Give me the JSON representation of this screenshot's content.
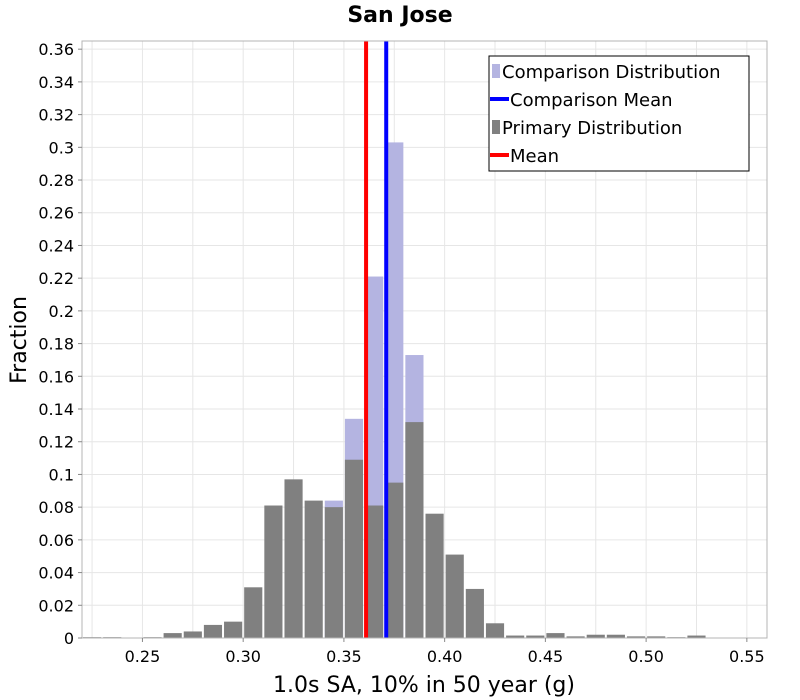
{
  "chart_data": {
    "type": "bar",
    "title": "San Jose",
    "xlabel": "1.0s SA, 10% in 50 year (g)",
    "ylabel": "Fraction",
    "xlim": [
      0.22,
      0.56
    ],
    "ylim": [
      0,
      0.365
    ],
    "bin_width": 0.01,
    "x_ticks": [
      0.25,
      0.3,
      0.35,
      0.4,
      0.45,
      0.5,
      0.55
    ],
    "x_tick_labels": [
      "0.25",
      "0.30",
      "0.35",
      "0.40",
      "0.45",
      "0.50",
      "0.55"
    ],
    "y_ticks": [
      0,
      0.02,
      0.04,
      0.06,
      0.08,
      0.1,
      0.12,
      0.14,
      0.16,
      0.18,
      0.2,
      0.22,
      0.24,
      0.26,
      0.28,
      0.3,
      0.32,
      0.34,
      0.36
    ],
    "y_tick_labels": [
      "0",
      "0.02",
      "0.04",
      "0.06",
      "0.08",
      "0.1",
      "0.12",
      "0.14",
      "0.16",
      "0.18",
      "0.2",
      "0.22",
      "0.24",
      "0.26",
      "0.28",
      "0.3",
      "0.32",
      "0.34",
      "0.36"
    ],
    "grid": true,
    "legend_position": "top-right",
    "series": [
      {
        "name": "Comparison Distribution",
        "kind": "bars",
        "color": "#b4b4e1",
        "bin_starts": [
          0.34,
          0.35,
          0.36,
          0.37,
          0.38
        ],
        "values": [
          0.084,
          0.134,
          0.221,
          0.303,
          0.173
        ]
      },
      {
        "name": "Comparison Mean",
        "kind": "vline",
        "color": "#0000ff",
        "x": 0.371
      },
      {
        "name": "Primary Distribution",
        "kind": "bars",
        "color": "#808080",
        "bin_starts": [
          0.22,
          0.23,
          0.24,
          0.25,
          0.26,
          0.27,
          0.28,
          0.29,
          0.3,
          0.31,
          0.32,
          0.33,
          0.34,
          0.35,
          0.36,
          0.37,
          0.38,
          0.39,
          0.4,
          0.41,
          0.42,
          0.43,
          0.44,
          0.45,
          0.46,
          0.47,
          0.48,
          0.49,
          0.5,
          0.51,
          0.52,
          0.53,
          0.54,
          0.55
        ],
        "values": [
          0.0005,
          0.0005,
          0.0003,
          0.0005,
          0.003,
          0.004,
          0.008,
          0.01,
          0.031,
          0.081,
          0.097,
          0.084,
          0.08,
          0.109,
          0.081,
          0.095,
          0.132,
          0.076,
          0.051,
          0.03,
          0.009,
          0.0015,
          0.0015,
          0.003,
          0.001,
          0.002,
          0.002,
          0.001,
          0.001,
          0.0005,
          0.0015,
          0.0003,
          0.0003,
          0.0003
        ]
      },
      {
        "name": "Mean",
        "kind": "vline",
        "color": "#ff0000",
        "x": 0.361
      }
    ]
  }
}
